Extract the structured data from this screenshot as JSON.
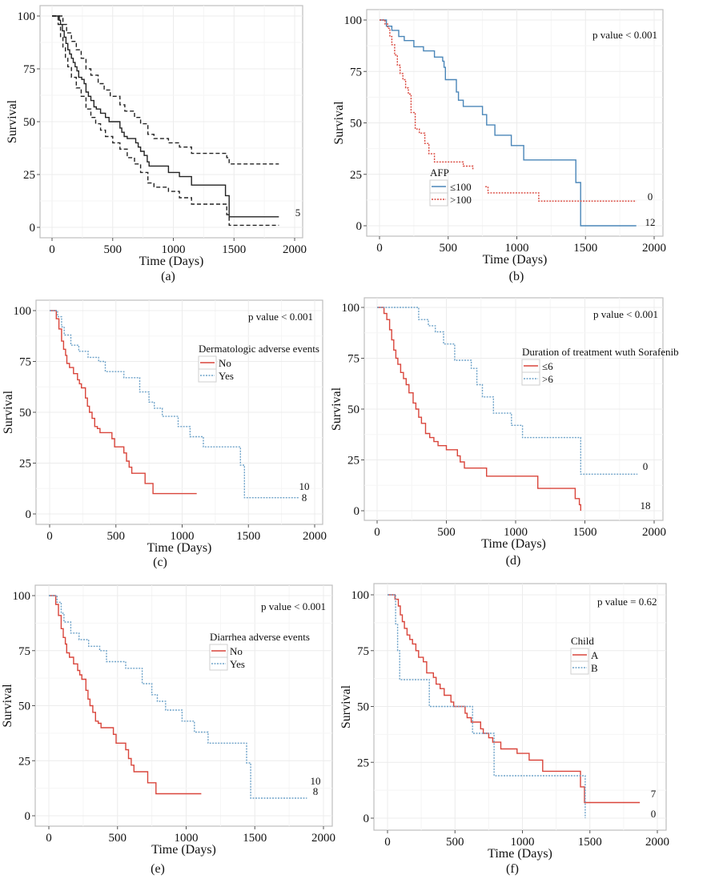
{
  "figure": {
    "caption_count": 6
  },
  "chart_data": [
    {
      "id": "a",
      "type": "line",
      "caption": "(a)",
      "xlabel": "Time (Days)",
      "ylabel": "Survival",
      "xlim": [
        0,
        2000
      ],
      "ylim": [
        0,
        100
      ],
      "xticks": [
        "0",
        "500",
        "1000",
        "1500",
        "2000"
      ],
      "yticks": [
        "0",
        "25",
        "50",
        "75",
        "100"
      ],
      "grid": true,
      "pvalue": "",
      "legend": null,
      "series": [
        {
          "name": "Survival",
          "color": "#222222",
          "dash": "solid",
          "x": [
            0,
            45,
            60,
            70,
            85,
            100,
            115,
            130,
            145,
            160,
            175,
            190,
            205,
            220,
            245,
            265,
            280,
            300,
            320,
            345,
            365,
            400,
            440,
            470,
            490,
            560,
            575,
            595,
            620,
            690,
            710,
            730,
            760,
            785,
            800,
            840,
            960,
            1050,
            1150,
            1430,
            1460,
            1870
          ],
          "y": [
            100,
            100,
            98,
            96,
            93,
            90,
            87,
            84,
            82,
            80,
            78,
            76,
            74,
            71,
            70,
            68,
            64,
            62,
            60,
            57,
            56,
            54,
            52,
            50,
            50,
            47,
            45,
            43,
            42,
            40,
            38,
            36,
            34,
            31,
            29,
            29,
            26,
            24,
            20,
            15,
            5,
            5
          ],
          "end_label": "5"
        },
        {
          "name": "Upper CI",
          "color": "#222222",
          "dash": "dashed",
          "x": [
            0,
            70,
            90,
            120,
            160,
            200,
            240,
            280,
            320,
            380,
            430,
            480,
            560,
            600,
            680,
            730,
            790,
            840,
            960,
            1050,
            1150,
            1440,
            1460,
            1870
          ],
          "y": [
            100,
            100,
            96,
            92,
            88,
            84,
            80,
            75,
            72,
            68,
            65,
            62,
            58,
            55,
            52,
            49,
            44,
            42,
            40,
            38,
            35,
            33,
            30,
            30
          ]
        },
        {
          "name": "Lower CI",
          "color": "#222222",
          "dash": "dashed",
          "x": [
            0,
            50,
            70,
            90,
            110,
            130,
            160,
            200,
            240,
            280,
            320,
            360,
            400,
            440,
            500,
            560,
            620,
            680,
            730,
            790,
            840,
            960,
            1050,
            1150,
            1440,
            1460,
            1870
          ],
          "y": [
            100,
            96,
            90,
            85,
            80,
            76,
            71,
            66,
            62,
            56,
            52,
            49,
            46,
            43,
            40,
            37,
            33,
            30,
            26,
            21,
            19,
            17,
            14,
            11,
            6,
            1,
            1
          ]
        }
      ]
    },
    {
      "id": "b",
      "type": "line",
      "caption": "(b)",
      "xlabel": "Time (Days)",
      "ylabel": "Survival",
      "xlim": [
        0,
        2000
      ],
      "ylim": [
        0,
        100
      ],
      "xticks": [
        "0",
        "500",
        "1000",
        "1500",
        "2000"
      ],
      "yticks": [
        "0",
        "25",
        "50",
        "75",
        "100"
      ],
      "grid": true,
      "pvalue": "p value < 0.001",
      "legend": {
        "title": "AFP",
        "position": "bottom-left",
        "entries": [
          "≤100",
          ">100"
        ]
      },
      "series": [
        {
          "name": "≤100",
          "color": "#4a86b8",
          "dash": "solid",
          "x": [
            0,
            50,
            90,
            140,
            180,
            250,
            320,
            400,
            460,
            470,
            480,
            560,
            575,
            610,
            620,
            750,
            780,
            840,
            960,
            1050,
            1430,
            1465,
            1870
          ],
          "y": [
            100,
            97,
            95,
            92,
            90,
            87,
            85,
            82,
            80,
            77,
            71,
            65,
            61,
            58,
            58,
            54,
            49,
            44,
            39,
            32,
            21,
            0,
            0
          ],
          "end_label": "0"
        },
        {
          "name": ">100",
          "color": "#d9453b",
          "dash": "dotted",
          "x": [
            0,
            40,
            60,
            75,
            90,
            110,
            130,
            150,
            170,
            190,
            210,
            230,
            260,
            290,
            330,
            360,
            400,
            590,
            610,
            680
          ],
          "y": [
            100,
            98,
            96,
            92,
            88,
            83,
            78,
            74,
            71,
            67,
            64,
            55,
            47,
            45,
            40,
            35,
            31,
            31,
            29,
            27
          ],
          "x2": [
            770,
            790,
            1140,
            1160,
            1870
          ],
          "y2": [
            19,
            16,
            16,
            12,
            12
          ],
          "end_label": "12"
        }
      ]
    },
    {
      "id": "c",
      "type": "line",
      "caption": "(c)",
      "xlabel": "Time (Days)",
      "ylabel": "Survival",
      "xlim": [
        0,
        2000
      ],
      "ylim": [
        0,
        100
      ],
      "xticks": [
        "0",
        "500",
        "1000",
        "1500",
        "2000"
      ],
      "yticks": [
        "0",
        "25",
        "50",
        "75",
        "100"
      ],
      "grid": true,
      "pvalue": "p value < 0.001",
      "legend": {
        "title": "Dermatologic adverse events",
        "position": "top-right",
        "entries": [
          "No",
          "Yes"
        ]
      },
      "series": [
        {
          "name": "No",
          "color": "#d9453b",
          "dash": "solid",
          "x": [
            0,
            50,
            70,
            90,
            105,
            120,
            130,
            150,
            180,
            210,
            225,
            240,
            270,
            285,
            300,
            320,
            340,
            360,
            380,
            410,
            470,
            490,
            560,
            580,
            600,
            620,
            720,
            780,
            1110
          ],
          "y": [
            100,
            96,
            91,
            85,
            81,
            78,
            74,
            72,
            69,
            66,
            64,
            62,
            57,
            53,
            50,
            47,
            43,
            42,
            40,
            40,
            37,
            33,
            30,
            26,
            23,
            20,
            15,
            10,
            10
          ],
          "end_label": "10"
        },
        {
          "name": "Yes",
          "color": "#6fa3c9",
          "dash": "dotted",
          "x": [
            0,
            60,
            90,
            110,
            160,
            220,
            290,
            370,
            420,
            560,
            680,
            750,
            790,
            850,
            970,
            1060,
            1160,
            1440,
            1470,
            1880
          ],
          "y": [
            100,
            97,
            92,
            88,
            83,
            80,
            77,
            75,
            70,
            67,
            60,
            55,
            52,
            48,
            43,
            38,
            33,
            24,
            8,
            8
          ],
          "end_label": "8"
        }
      ]
    },
    {
      "id": "d",
      "type": "line",
      "caption": "(d)",
      "xlabel": "Time (Days)",
      "ylabel": "Survival",
      "xlim": [
        0,
        2000
      ],
      "ylim": [
        0,
        100
      ],
      "xticks": [
        "0",
        "500",
        "1000",
        "1500",
        "2000"
      ],
      "yticks": [
        "0",
        "25",
        "50",
        "75",
        "100"
      ],
      "grid": true,
      "pvalue": "p value < 0.001",
      "legend": {
        "title": "Duration of treatment wuth Sorafenib",
        "position": "top-right",
        "entries": [
          "≤6",
          ">6"
        ]
      },
      "series": [
        {
          "name": "≤6",
          "color": "#d9453b",
          "dash": "solid",
          "x": [
            0,
            50,
            70,
            90,
            105,
            120,
            135,
            150,
            170,
            190,
            210,
            230,
            260,
            280,
            300,
            320,
            350,
            380,
            410,
            440,
            500,
            580,
            600,
            630,
            790,
            1160,
            1430,
            1460,
            1470
          ],
          "y": [
            100,
            97,
            94,
            89,
            84,
            79,
            75,
            72,
            68,
            65,
            62,
            58,
            53,
            50,
            46,
            43,
            38,
            36,
            34,
            32,
            30,
            27,
            24,
            21,
            17,
            11,
            6,
            3,
            0
          ],
          "end_label": "0"
        },
        {
          "name": ">6",
          "color": "#6fa3c9",
          "dash": "dotted",
          "x": [
            0,
            270,
            300,
            370,
            420,
            480,
            560,
            680,
            720,
            760,
            840,
            970,
            1050,
            1470,
            1880
          ],
          "y": [
            100,
            100,
            94,
            91,
            88,
            82,
            74,
            70,
            62,
            56,
            48,
            42,
            36,
            18,
            18
          ],
          "end_label": "18"
        }
      ]
    },
    {
      "id": "e",
      "type": "line",
      "caption": "(e)",
      "xlabel": "Time (Days)",
      "ylabel": "Survival",
      "xlim": [
        0,
        2000
      ],
      "ylim": [
        0,
        100
      ],
      "xticks": [
        "0",
        "500",
        "1000",
        "1500",
        "2000"
      ],
      "yticks": [
        "0",
        "25",
        "50",
        "75",
        "100"
      ],
      "grid": true,
      "pvalue": "p value < 0.001",
      "legend": {
        "title": "Diarrhea adverse events",
        "position": "top-right",
        "entries": [
          "No",
          "Yes"
        ]
      },
      "series": [
        {
          "name": "No",
          "color": "#d9453b",
          "dash": "solid",
          "x": [
            0,
            50,
            70,
            90,
            105,
            120,
            130,
            150,
            180,
            210,
            225,
            240,
            270,
            285,
            300,
            320,
            340,
            360,
            380,
            410,
            470,
            490,
            560,
            580,
            600,
            620,
            720,
            780,
            1110
          ],
          "y": [
            100,
            96,
            91,
            85,
            81,
            78,
            74,
            72,
            69,
            66,
            64,
            62,
            57,
            53,
            50,
            47,
            43,
            42,
            40,
            40,
            37,
            33,
            30,
            26,
            23,
            20,
            15,
            10,
            10
          ],
          "end_label": "10"
        },
        {
          "name": "Yes",
          "color": "#6fa3c9",
          "dash": "dotted",
          "x": [
            0,
            60,
            90,
            110,
            160,
            220,
            290,
            370,
            420,
            560,
            680,
            750,
            790,
            850,
            970,
            1060,
            1160,
            1440,
            1470,
            1880
          ],
          "y": [
            100,
            97,
            92,
            88,
            83,
            80,
            77,
            75,
            70,
            67,
            60,
            55,
            52,
            48,
            43,
            38,
            33,
            24,
            8,
            8
          ],
          "end_label": "8"
        }
      ]
    },
    {
      "id": "f",
      "type": "line",
      "caption": "(f)",
      "xlabel": "Time (Days)",
      "ylabel": "Survival",
      "xlim": [
        0,
        2000
      ],
      "ylim": [
        0,
        100
      ],
      "xticks": [
        "0",
        "500",
        "1000",
        "1500",
        "2000"
      ],
      "yticks": [
        "0",
        "25",
        "50",
        "75",
        "100"
      ],
      "grid": true,
      "pvalue": "p value = 0.62",
      "legend": {
        "title": "Child",
        "position": "top-right",
        "entries": [
          "A",
          "B"
        ]
      },
      "series": [
        {
          "name": "A",
          "color": "#d9453b",
          "dash": "solid",
          "x": [
            0,
            55,
            80,
            95,
            110,
            125,
            145,
            165,
            185,
            210,
            230,
            265,
            290,
            340,
            360,
            390,
            420,
            470,
            490,
            560,
            575,
            590,
            620,
            690,
            710,
            750,
            780,
            840,
            960,
            1050,
            1150,
            1430,
            1460,
            1870
          ],
          "y": [
            100,
            98,
            95,
            91,
            88,
            85,
            82,
            80,
            78,
            75,
            72,
            70,
            65,
            63,
            60,
            58,
            55,
            52,
            50,
            50,
            47,
            45,
            43,
            40,
            38,
            36,
            34,
            31,
            29,
            26,
            21,
            14,
            7,
            7
          ],
          "end_label": "7"
        },
        {
          "name": "B",
          "color": "#6fa3c9",
          "dash": "dotted",
          "x": [
            0,
            60,
            75,
            90,
            310,
            630,
            790,
            1460,
            1465
          ],
          "y": [
            100,
            87,
            75,
            62,
            50,
            38,
            19,
            19,
            0
          ],
          "end_label": "0"
        }
      ]
    }
  ]
}
